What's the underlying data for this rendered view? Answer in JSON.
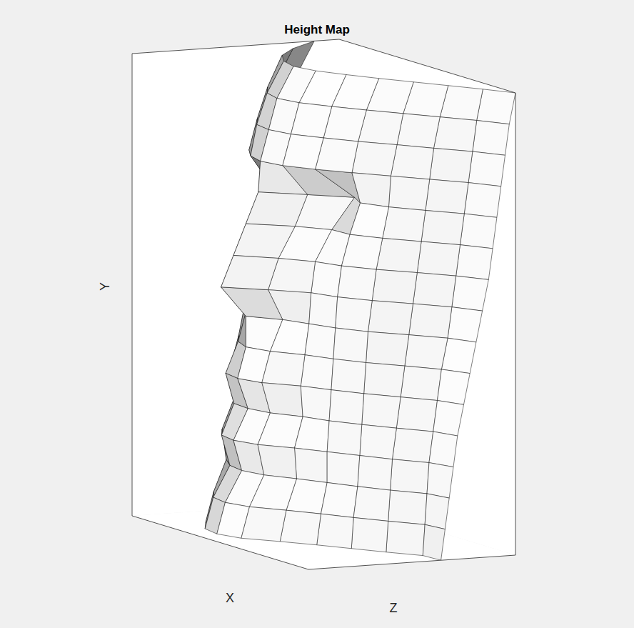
{
  "chart_data": {
    "type": "surface",
    "title": "Height Map",
    "x_label": "X",
    "y_label": "Y",
    "z_label": "Z",
    "xlim": [
      0,
      10
    ],
    "ylim": [
      0,
      15
    ],
    "zlim": [
      0,
      11
    ],
    "tick_labels": false,
    "grid": false,
    "color": "#000000",
    "y": [
      15,
      14,
      13,
      12,
      11,
      10,
      9,
      8,
      7,
      6,
      5,
      4,
      3,
      2,
      1,
      0
    ],
    "z": [
      0,
      1,
      2,
      3,
      4,
      5,
      6,
      7,
      8,
      9,
      10,
      11
    ],
    "x": [
      [
        1.2,
        3.0,
        4.3,
        5.0,
        5.3,
        5.0,
        4.3,
        3.5,
        2.6,
        1.7,
        0.8,
        0.0
      ],
      [
        2.0,
        3.8,
        5.0,
        5.8,
        6.1,
        5.8,
        5.0,
        4.1,
        3.1,
        2.1,
        1.1,
        0.3
      ],
      [
        2.4,
        4.2,
        5.5,
        6.3,
        6.5,
        6.2,
        5.4,
        4.5,
        3.4,
        2.4,
        1.3,
        0.5
      ],
      [
        2.6,
        4.6,
        5.9,
        6.6,
        6.9,
        6.6,
        5.8,
        4.8,
        3.7,
        2.6,
        1.5,
        0.7
      ],
      [
        2.8,
        3.8,
        4.0,
        5.6,
        7.0,
        5.4,
        3.9,
        4.4,
        3.8,
        2.8,
        1.7,
        0.9
      ],
      [
        3.0,
        4.4,
        5.0,
        6.2,
        7.6,
        6.0,
        5.0,
        4.9,
        4.1,
        3.0,
        1.9,
        1.1
      ],
      [
        3.2,
        4.8,
        5.8,
        7.0,
        8.2,
        6.8,
        5.8,
        5.3,
        4.4,
        3.2,
        2.1,
        1.3
      ],
      [
        3.4,
        5.0,
        6.0,
        7.6,
        8.8,
        7.3,
        6.0,
        5.5,
        4.6,
        3.4,
        2.3,
        1.6
      ],
      [
        3.6,
        5.1,
        6.1,
        6.8,
        7.6,
        6.6,
        6.1,
        5.6,
        4.8,
        3.6,
        2.5,
        1.9
      ],
      [
        3.8,
        5.3,
        6.4,
        7.2,
        7.6,
        7.2,
        6.3,
        5.7,
        4.9,
        3.8,
        2.8,
        2.2
      ],
      [
        4.0,
        5.5,
        6.8,
        7.8,
        8.0,
        7.6,
        6.5,
        5.8,
        5.0,
        4.0,
        3.0,
        2.5
      ],
      [
        4.2,
        5.6,
        6.6,
        7.4,
        7.5,
        7.2,
        6.4,
        5.9,
        5.1,
        4.2,
        3.2,
        2.8
      ],
      [
        4.4,
        5.9,
        7.2,
        8.0,
        8.2,
        7.8,
        6.8,
        6.0,
        5.2,
        4.4,
        3.4,
        3.0
      ],
      [
        4.6,
        6.0,
        7.0,
        7.6,
        7.8,
        7.5,
        6.7,
        6.0,
        5.3,
        4.5,
        3.5,
        3.2
      ],
      [
        4.8,
        6.3,
        7.6,
        8.4,
        8.6,
        8.2,
        7.2,
        6.3,
        5.5,
        4.6,
        3.6,
        3.4
      ],
      [
        5.0,
        6.6,
        8.0,
        8.8,
        9.0,
        8.6,
        7.5,
        6.5,
        5.6,
        4.7,
        3.7,
        3.6
      ]
    ]
  }
}
